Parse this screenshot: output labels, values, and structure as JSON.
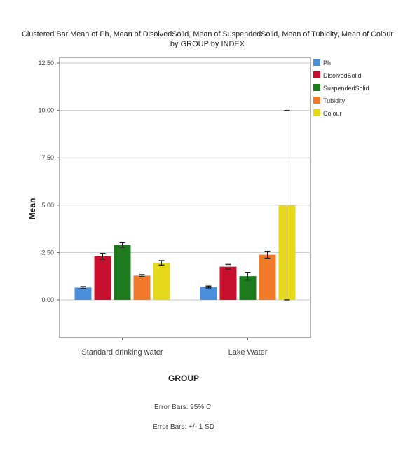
{
  "chart_data": {
    "type": "bar",
    "title_line1": "Clustered Bar Mean of Ph, Mean of DisolvedSolid, Mean of SuspendedSolid, Mean of Tubidity, Mean of Colour",
    "title_line2": "by GROUP by INDEX",
    "xlabel": "GROUP",
    "ylabel": "Mean",
    "categories": [
      "Standard drinking water",
      "Lake Water"
    ],
    "ylim": [
      -2.0,
      12.8
    ],
    "yticks": [
      0.0,
      2.5,
      5.0,
      7.5,
      10.0,
      12.5
    ],
    "ytick_labels": [
      "0.00",
      "2.50",
      "5.00",
      "7.50",
      "10.00",
      "12.50"
    ],
    "grid": true,
    "legend_position": "right",
    "series": [
      {
        "name": "Ph",
        "color": "#4a8fdc",
        "values": [
          0.65,
          0.68
        ],
        "err": [
          0.05,
          0.05
        ]
      },
      {
        "name": "DisolvedSolid",
        "color": "#c8102e",
        "values": [
          2.3,
          1.75
        ],
        "err": [
          0.15,
          0.12
        ]
      },
      {
        "name": "SuspendedSolid",
        "color": "#1e7b1e",
        "values": [
          2.9,
          1.25
        ],
        "err": [
          0.12,
          0.2
        ]
      },
      {
        "name": "Tubidity",
        "color": "#f07a2a",
        "values": [
          1.28,
          2.38
        ],
        "err": [
          0.05,
          0.18
        ]
      },
      {
        "name": "Colour",
        "color": "#e6d81a",
        "values": [
          1.95,
          5.0
        ],
        "err": [
          0.12,
          5.0
        ]
      }
    ],
    "footnotes": [
      "Error Bars: 95% CI",
      "Error Bars: +/- 1 SD"
    ]
  }
}
